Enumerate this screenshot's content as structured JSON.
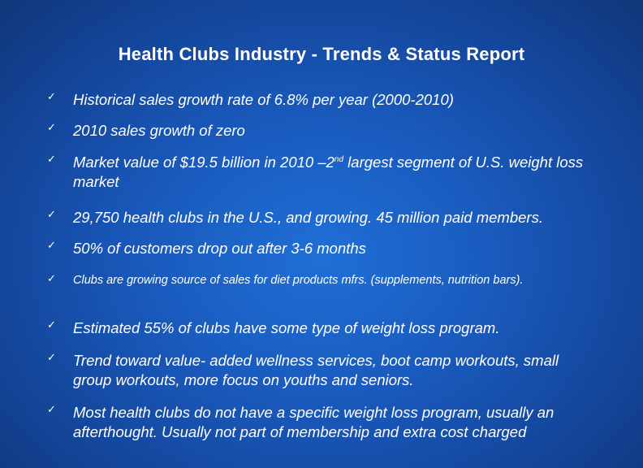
{
  "slide": {
    "title": "Health Clubs Industry - Trends & Status Report",
    "check_icon": "✓",
    "bullets": [
      {
        "text": "Historical sales growth rate of 6.8% per year (2000-2010)"
      },
      {
        "text": "2010 sales growth of  zero"
      },
      {
        "pre": "Market value of $19.5 billion in 2010 –2",
        "sup": "nd",
        "post": " largest segment of U.S. weight loss market"
      },
      {
        "text": "29,750 health clubs in the U.S., and growing.  45 million paid members."
      },
      {
        "text": "50% of customers drop out after 3-6 months"
      },
      {
        "text": "Clubs are growing source of sales for diet products mfrs. (supplements, nutrition bars)."
      },
      {
        "text": "Estimated  55% of clubs have some type of weight loss program."
      },
      {
        "text": "Trend toward  value- added wellness services, boot camp workouts, small group workouts, more focus on youths and seniors."
      },
      {
        "text": "Most health clubs do not have a  specific weight loss program, usually an afterthought.  Usually not part of membership and extra cost charged"
      }
    ]
  }
}
